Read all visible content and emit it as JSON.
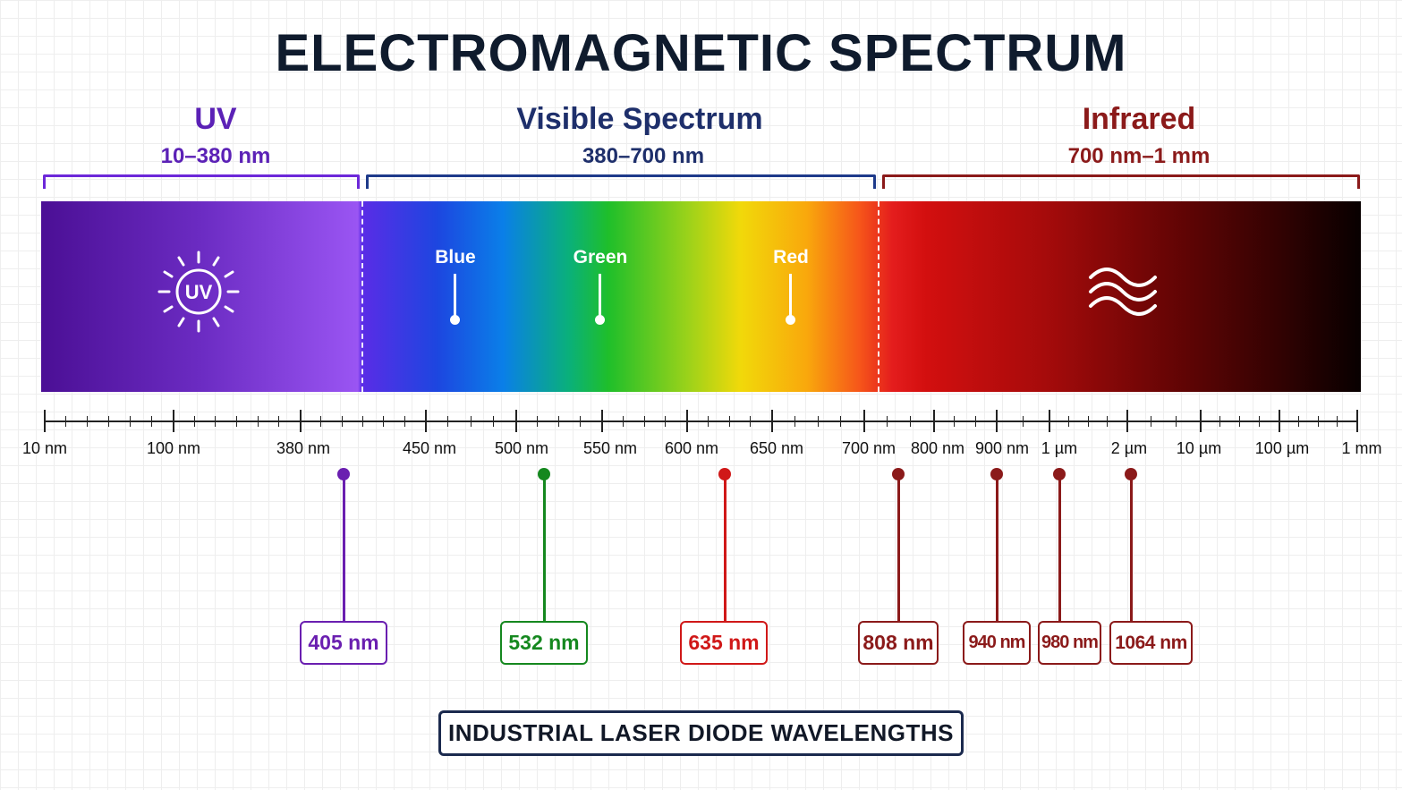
{
  "title": "ELECTROMAGNETIC SPECTRUM",
  "regions": [
    {
      "name": "UV",
      "range": "10–380 nm",
      "color": "#5b21b6"
    },
    {
      "name": "Visible Spectrum",
      "range": "380–700 nm",
      "color": "#1e2f6b"
    },
    {
      "name": "Infrared",
      "range": "700 nm–1 mm",
      "color": "#8b1a1a"
    }
  ],
  "bands": [
    {
      "label": "Blue"
    },
    {
      "label": "Green"
    },
    {
      "label": "Red"
    }
  ],
  "icons": {
    "uv": "uv-sun-icon",
    "uv_text": "UV",
    "infrared": "heat-waves-icon"
  },
  "axis": {
    "labels": [
      "10 nm",
      "100 nm",
      "380 nm",
      "450 nm",
      "500 nm",
      "550 nm",
      "600 nm",
      "650 nm",
      "700 nm",
      "800 nm",
      "900 nm",
      "1 µm",
      "2 µm",
      "10 µm",
      "100 µm",
      "1 mm"
    ]
  },
  "lasers": [
    {
      "label": "405 nm",
      "color": "#6a1fb0"
    },
    {
      "label": "532 nm",
      "color": "#15881f"
    },
    {
      "label": "635 nm",
      "color": "#d01818"
    },
    {
      "label": "808 nm",
      "color": "#8b1a1a"
    },
    {
      "label": "940 nm",
      "color": "#8b1a1a"
    },
    {
      "label": "980 nm",
      "color": "#8b1a1a"
    },
    {
      "label": "1064 nm",
      "color": "#8b1a1a"
    }
  ],
  "footer": "INDUSTRIAL LASER DIODE WAVELENGTHS"
}
